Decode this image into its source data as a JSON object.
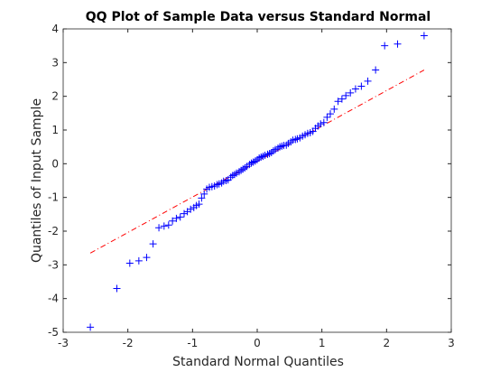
{
  "chart_data": {
    "type": "scatter",
    "title": "QQ Plot of Sample Data versus Standard Normal",
    "x_label": "Standard Normal Quantiles",
    "y_label": "Quantiles of Input Sample",
    "xlim": [
      -3,
      3
    ],
    "ylim": [
      -5,
      4
    ],
    "xticks": [
      -3,
      -2,
      -1,
      0,
      1,
      2,
      3
    ],
    "yticks": [
      -5,
      -4,
      -3,
      -2,
      -1,
      0,
      1,
      2,
      3,
      4
    ],
    "series": [
      {
        "color": "#0000ff",
        "x": [
          -2.58,
          -2.17,
          -1.97,
          -1.83,
          -1.71,
          -1.61,
          -1.52,
          -1.44,
          -1.37,
          -1.31,
          -1.25,
          -1.19,
          -1.13,
          -1.08,
          -1.03,
          -0.98,
          -0.94,
          -0.9,
          -0.86,
          -0.82,
          -0.78,
          -0.74,
          -0.7,
          -0.66,
          -0.62,
          -0.59,
          -0.55,
          -0.52,
          -0.48,
          -0.45,
          -0.41,
          -0.38,
          -0.35,
          -0.32,
          -0.28,
          -0.25,
          -0.22,
          -0.19,
          -0.16,
          -0.12,
          -0.09,
          -0.06,
          -0.03,
          0,
          0.03,
          0.06,
          0.09,
          0.12,
          0.16,
          0.19,
          0.22,
          0.25,
          0.28,
          0.32,
          0.35,
          0.38,
          0.41,
          0.45,
          0.48,
          0.52,
          0.55,
          0.59,
          0.62,
          0.66,
          0.7,
          0.74,
          0.78,
          0.82,
          0.86,
          0.9,
          0.94,
          0.98,
          1.03,
          1.08,
          1.13,
          1.19,
          1.25,
          1.31,
          1.37,
          1.44,
          1.52,
          1.61,
          1.71,
          1.83,
          1.97,
          2.17,
          2.58
        ],
        "values": [
          -4.85,
          -3.7,
          -2.95,
          -2.88,
          -2.78,
          -2.38,
          -1.9,
          -1.85,
          -1.82,
          -1.7,
          -1.62,
          -1.58,
          -1.48,
          -1.42,
          -1.35,
          -1.3,
          -1.24,
          -1.2,
          -1.02,
          -0.9,
          -0.75,
          -0.7,
          -0.68,
          -0.66,
          -0.62,
          -0.6,
          -0.57,
          -0.52,
          -0.5,
          -0.48,
          -0.4,
          -0.35,
          -0.32,
          -0.28,
          -0.24,
          -0.2,
          -0.16,
          -0.12,
          -0.08,
          -0.02,
          0.02,
          0.05,
          0.08,
          0.12,
          0.17,
          0.2,
          0.22,
          0.25,
          0.28,
          0.3,
          0.33,
          0.38,
          0.42,
          0.46,
          0.5,
          0.52,
          0.54,
          0.55,
          0.6,
          0.65,
          0.7,
          0.72,
          0.74,
          0.77,
          0.82,
          0.86,
          0.9,
          0.92,
          0.96,
          1.05,
          1.12,
          1.18,
          1.22,
          1.38,
          1.48,
          1.62,
          1.85,
          1.92,
          2.02,
          2.1,
          2.22,
          2.3,
          2.45,
          2.78,
          3.5,
          3.55,
          3.8
        ]
      }
    ],
    "reference_line": {
      "color": "#ff0000",
      "x": [
        -2.58,
        2.58
      ],
      "values": [
        -2.65,
        2.78
      ]
    }
  }
}
